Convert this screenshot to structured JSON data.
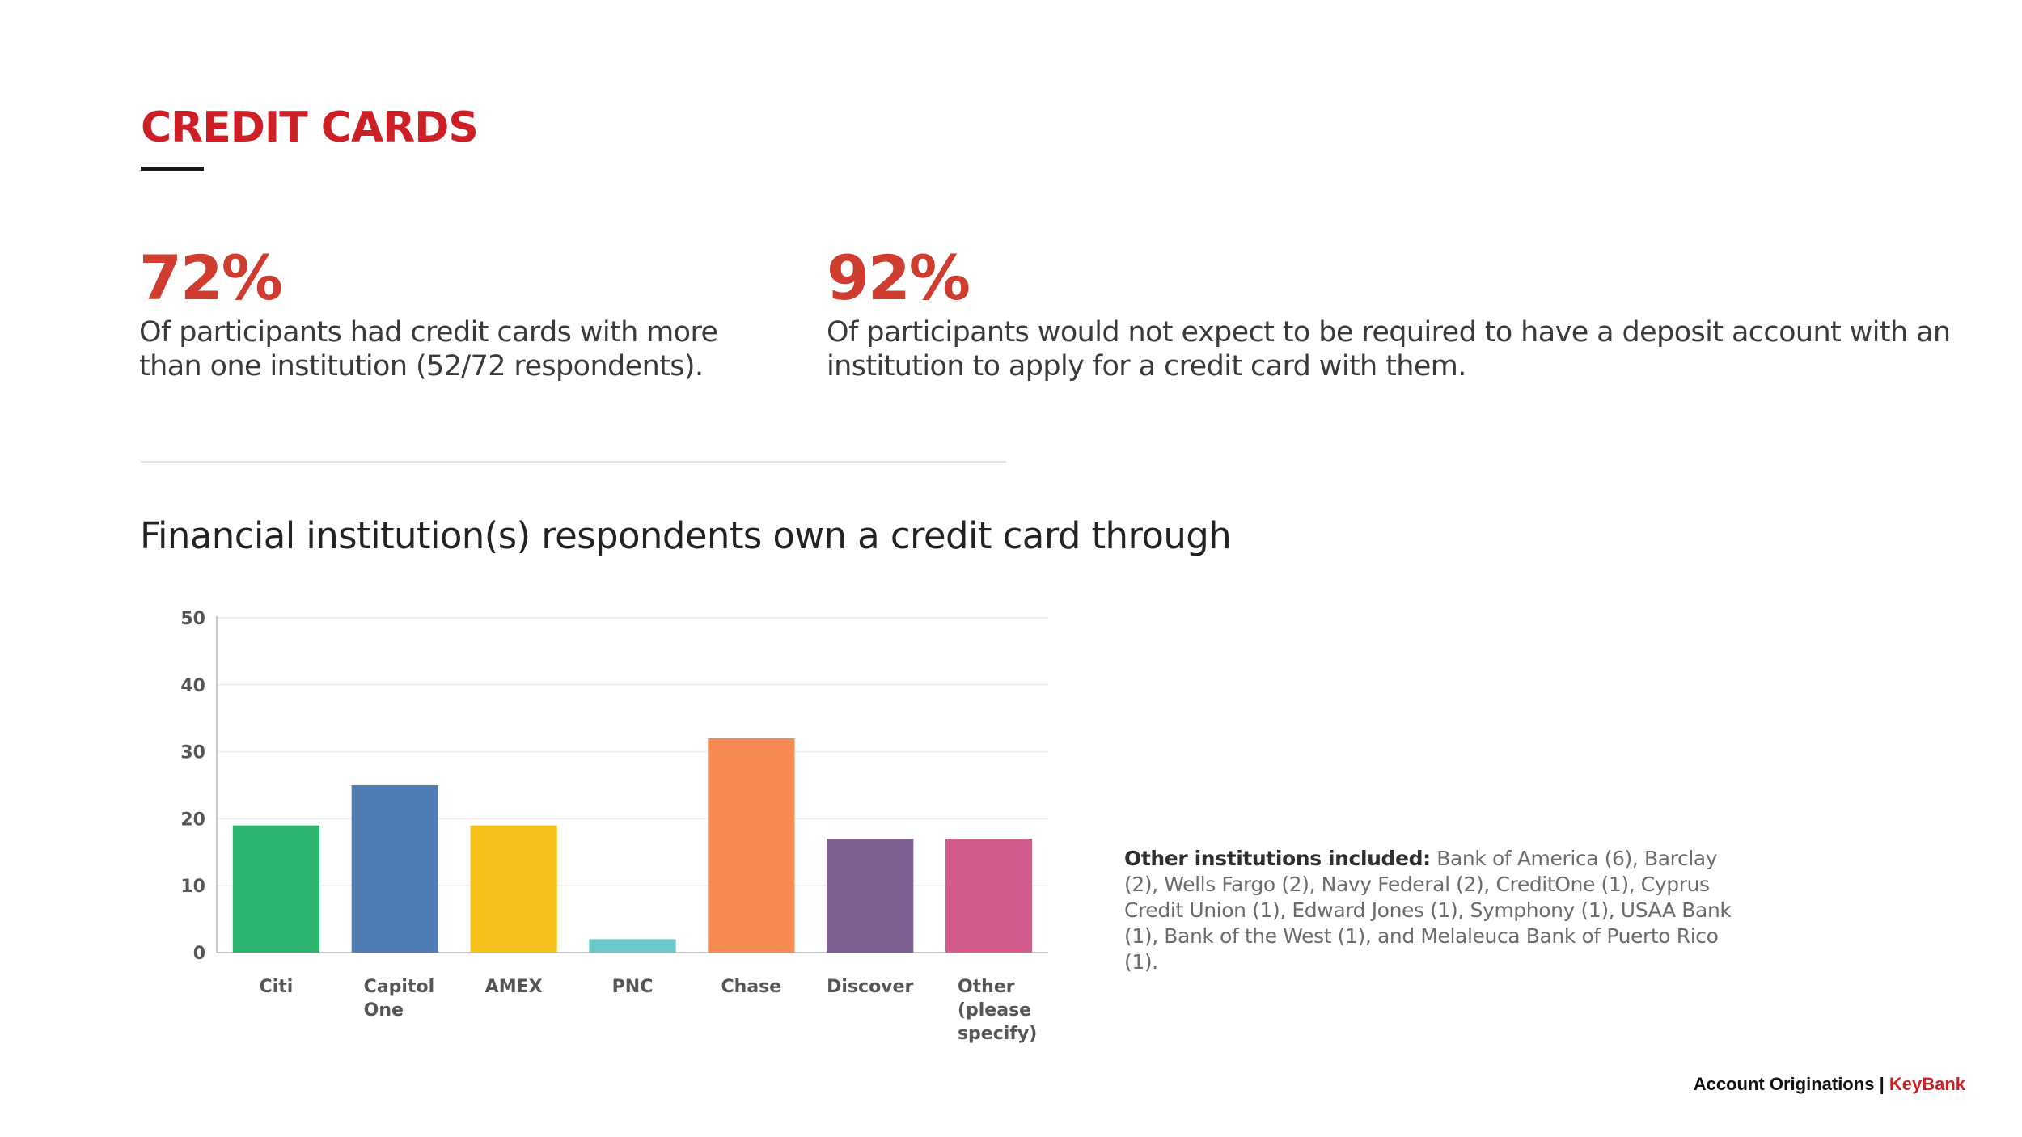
{
  "header": {
    "title": "CREDIT CARDS"
  },
  "stats": [
    {
      "value": "72%",
      "text": "Of participants had credit cards with more than one institution (52/72 respondents)."
    },
    {
      "value": "92%",
      "text": "Of participants would not expect to be required to have a deposit account with an institution to apply for a credit card with them."
    }
  ],
  "chart_section": {
    "heading": "Financial institution(s) respondents own a credit card through"
  },
  "chart_data": {
    "type": "bar",
    "title": "Financial institution(s) respondents own a credit card through",
    "categories": [
      "Citi",
      "Capitol One",
      "AMEX",
      "PNC",
      "Chase",
      "Discover",
      "Other (please specify)"
    ],
    "category_lines": [
      [
        "Citi"
      ],
      [
        "Capitol",
        "One"
      ],
      [
        "AMEX"
      ],
      [
        "PNC"
      ],
      [
        "Chase"
      ],
      [
        "Discover"
      ],
      [
        "Other",
        "(please",
        "specify)"
      ]
    ],
    "values": [
      19,
      25,
      19,
      2,
      32,
      17,
      17
    ],
    "colors": [
      "#2db56f",
      "#517db5",
      "#f5c118",
      "#6cc9cb",
      "#f58b51",
      "#7f5e91",
      "#d45b8d"
    ],
    "yticks": [
      0,
      10,
      20,
      30,
      40,
      50
    ],
    "ylim": [
      0,
      50
    ],
    "xlabel": "",
    "ylabel": "",
    "grid": true,
    "legend": "none"
  },
  "note": {
    "label": "Other institutions included:",
    "text": " Bank of America (6), Barclay (2), Wells Fargo (2), Navy Federal (2), CreditOne (1), Cyprus Credit Union (1), Edward Jones (1), Symphony (1), USAA Bank (1), Bank of the West (1), and Melaleuca Bank of Puerto Rico (1)."
  },
  "footer": {
    "label": "Account Originations",
    "separator": "|",
    "brand": "KeyBank"
  }
}
